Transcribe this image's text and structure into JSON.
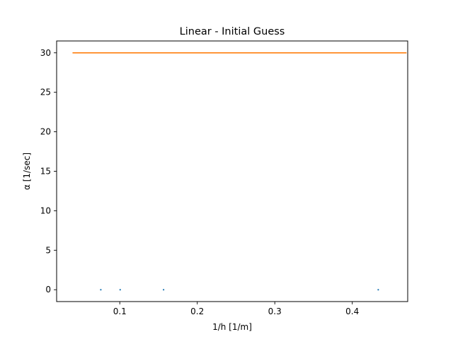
{
  "chart_data": {
    "type": "scatter",
    "title": "Linear - Initial Guess",
    "xlabel": "1/h [1/m]",
    "ylabel": "α [1/sec]",
    "xlim": [
      0.0185,
      0.4715
    ],
    "ylim": [
      -1.5,
      31.5
    ],
    "xticks": [
      0.1,
      0.2,
      0.3,
      0.4
    ],
    "xtick_labels": [
      "0.1",
      "0.2",
      "0.3",
      "0.4"
    ],
    "yticks": [
      0,
      5,
      10,
      15,
      20,
      25,
      30
    ],
    "ytick_labels": [
      "0",
      "5",
      "10",
      "15",
      "20",
      "25",
      "30"
    ],
    "grid": false,
    "legend": "none",
    "series": [
      {
        "kind": "scatter",
        "color": "#1f77b4",
        "points": [
          {
            "x": 0.0755,
            "y": 0
          },
          {
            "x": 0.1005,
            "y": 0
          },
          {
            "x": 0.1565,
            "y": 0
          },
          {
            "x": 0.4335,
            "y": 0
          }
        ]
      },
      {
        "kind": "line",
        "color": "#ff7f0e",
        "points": [
          {
            "x": 0.039,
            "y": 30
          },
          {
            "x": 0.47,
            "y": 30
          }
        ]
      }
    ]
  }
}
